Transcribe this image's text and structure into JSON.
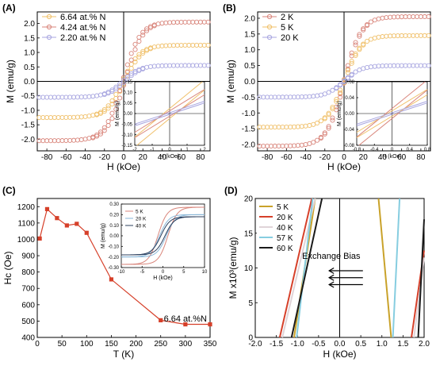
{
  "chart_data": [
    {
      "panel": "(A)",
      "type": "scatter",
      "xlabel": "H (kOe)",
      "ylabel": "M (emu/g)",
      "xlim": [
        -90,
        90
      ],
      "ylim": [
        -2.4,
        2.4
      ],
      "xticks": [
        -80,
        -60,
        -40,
        -20,
        0,
        20,
        40,
        60,
        80
      ],
      "yticks": [
        -2.0,
        -1.5,
        -1.0,
        -0.5,
        0.0,
        0.5,
        1.0,
        1.5,
        2.0
      ],
      "legend_position": "top-left",
      "series": [
        {
          "name": "6.64 at.% N",
          "color": "#f0c06a",
          "ms": 1.25,
          "hc": 1.2
        },
        {
          "name": "4.24 at.% N",
          "color": "#d9867c",
          "ms": 2.05,
          "hc": 1.2
        },
        {
          "name": "2.20 at.% N",
          "color": "#a8a6e0",
          "ms": 0.55,
          "hc": 1.2
        }
      ],
      "inset": {
        "xlabel": "H (kOe)",
        "ylabel": "M (emu/g)",
        "xlim": [
          -2,
          2
        ],
        "ylim": [
          -0.15,
          0.15
        ],
        "xticks": [
          -2,
          -1,
          0,
          1,
          2
        ],
        "yticks": [
          -0.15,
          -0.1,
          -0.05,
          0.0,
          0.05,
          0.1,
          0.15
        ]
      }
    },
    {
      "panel": "(B)",
      "type": "scatter",
      "xlabel": "H (kOe)",
      "ylabel": "M (emu/g)",
      "xlim": [
        -90,
        90
      ],
      "ylim": [
        -2.2,
        2.2
      ],
      "xticks": [
        -80,
        -60,
        -40,
        -20,
        0,
        20,
        40,
        60,
        80
      ],
      "yticks": [
        -2.0,
        -1.5,
        -1.0,
        -0.5,
        0.0,
        0.5,
        1.0,
        1.5,
        2.0
      ],
      "legend_position": "top-left",
      "series": [
        {
          "name": "2 K",
          "color": "#d9867c",
          "ms": 2.05,
          "hc": 0.5
        },
        {
          "name": "5 K",
          "color": "#f0c06a",
          "ms": 1.45,
          "hc": 0.5
        },
        {
          "name": "20 K",
          "color": "#a8a6e0",
          "ms": 0.5,
          "hc": 0.5
        }
      ],
      "inset": {
        "xlabel": "H (kOe)",
        "ylabel": "M (emu/g)",
        "xlim": [
          -0.8,
          0.8
        ],
        "ylim": [
          -0.08,
          0.08
        ],
        "xticks": [
          -0.8,
          -0.4,
          0.0,
          0.4,
          0.8
        ],
        "yticks": [
          -0.08,
          -0.04,
          0.0,
          0.04,
          0.08
        ]
      }
    },
    {
      "panel": "(C)",
      "type": "line",
      "xlabel": "T (K)",
      "ylabel": "Hc (Oe)",
      "xlim": [
        0,
        350
      ],
      "ylim": [
        400,
        1250
      ],
      "xticks": [
        0,
        50,
        100,
        150,
        200,
        250,
        300,
        350
      ],
      "yticks": [
        400,
        500,
        600,
        700,
        800,
        900,
        1000,
        1100,
        1200
      ],
      "annotation": "6.64 at.%N",
      "series": [
        {
          "color": "#d6402a",
          "x": [
            5,
            20,
            40,
            60,
            80,
            100,
            150,
            250,
            300,
            350
          ],
          "y": [
            1005,
            1185,
            1130,
            1085,
            1095,
            1040,
            755,
            505,
            480,
            480
          ]
        }
      ],
      "inset": {
        "xlabel": "H (kOe)",
        "ylabel": "M (emu/g)",
        "xlim": [
          -10,
          10
        ],
        "ylim": [
          -0.3,
          0.3
        ],
        "xticks": [
          -10,
          -5,
          0,
          5,
          10
        ],
        "yticks": [
          -0.3,
          -0.2,
          -0.1,
          0.0,
          0.1,
          0.2,
          0.3
        ],
        "legend_position": "top-left",
        "series": [
          {
            "name": "5 K",
            "color": "#d9867c"
          },
          {
            "name": "20 K",
            "color": "#8ab7d8"
          },
          {
            "name": "40 K",
            "color": "#2b3f5e"
          }
        ]
      }
    },
    {
      "panel": "(D)",
      "type": "line",
      "xlabel": "H (kOe)",
      "ylabel": "M x10³(emu/g)",
      "xlim": [
        -2.0,
        2.0
      ],
      "ylim": [
        0,
        20
      ],
      "xticks": [
        "-2.0",
        "-1.5",
        "-1.0",
        "-0.5",
        "0.0",
        "0.5",
        "1.0",
        "1.5",
        "2.0"
      ],
      "yticks": [
        "0",
        "5",
        "10",
        "15",
        "20"
      ],
      "legend_position": "top-left",
      "annotation": "Exchange Bias",
      "series": [
        {
          "name": "5 K",
          "color": "#c9a22a",
          "left": [
            [
              -1.08,
              0
            ],
            [
              -0.58,
              20
            ]
          ],
          "right": [
            [
              1.22,
              0
            ],
            [
              0.92,
              20
            ]
          ]
        },
        {
          "name": "20 K",
          "color": "#d6402a",
          "left": [
            [
              -1.42,
              0
            ],
            [
              -0.66,
              20
            ]
          ],
          "right": [
            [
              1.7,
              0
            ],
            [
              2.0,
              12.5
            ]
          ]
        },
        {
          "name": "40 K",
          "color": "#e0d4d8",
          "left": [
            [
              -1.36,
              0
            ],
            [
              -0.58,
              20
            ]
          ],
          "right": [
            [
              1.76,
              0
            ],
            [
              2.0,
              11.5
            ]
          ]
        },
        {
          "name": "57 K",
          "color": "#86cde0",
          "left": [
            [
              -1.02,
              0
            ],
            [
              -0.64,
              20
            ]
          ],
          "right": [
            [
              1.26,
              0
            ],
            [
              1.42,
              20
            ]
          ]
        },
        {
          "name": "60 K",
          "color": "#1a1a1a",
          "left": [
            [
              -1.14,
              0
            ],
            [
              -0.42,
              20
            ]
          ],
          "right": [
            [
              1.86,
              0
            ],
            [
              2.0,
              17
            ]
          ]
        }
      ]
    }
  ]
}
